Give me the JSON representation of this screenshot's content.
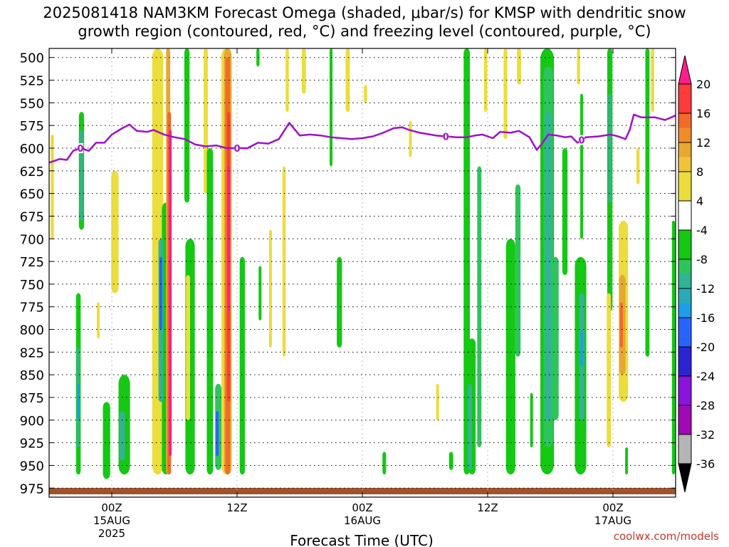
{
  "title_line1": "2025081418 NAM3KM Forecast Omega (shaded, μbar/s) for KMSP with dendritic snow",
  "title_line2": "growth region (contoured, red, °C) and freezing level (contoured, purple, °C)",
  "credit": "coolwx.com/models",
  "chart_data": {
    "type": "heatmap",
    "title": "2025081418 NAM3KM Forecast Omega (shaded, μbar/s) for KMSP with dendritic snow growth region (contoured, red, °C) and freezing level (contoured, purple, °C)",
    "xlabel": "Forecast Time (UTC)",
    "ylabel": "",
    "x_ticks": [
      {
        "label": "00Z",
        "sub": "15AUG",
        "sub2": "2025",
        "hour": 6
      },
      {
        "label": "12Z",
        "sub": "",
        "sub2": "",
        "hour": 18
      },
      {
        "label": "00Z",
        "sub": "16AUG",
        "sub2": "",
        "hour": 30
      },
      {
        "label": "12Z",
        "sub": "",
        "sub2": "",
        "hour": 42
      },
      {
        "label": "00Z",
        "sub": "17AUG",
        "sub2": "",
        "hour": 54
      }
    ],
    "xlim_hours": [
      0,
      60
    ],
    "y_levels_hPa": [
      500,
      525,
      550,
      575,
      600,
      625,
      650,
      675,
      700,
      725,
      750,
      775,
      800,
      825,
      850,
      875,
      900,
      925,
      950,
      975
    ],
    "ylim_hPa": [
      490,
      985
    ],
    "colorbar": {
      "unit": "μbar/s",
      "ticks": [
        20,
        16,
        12,
        8,
        4,
        -4,
        -8,
        -12,
        -16,
        -20,
        -24,
        -28,
        -32,
        -36
      ],
      "bands": [
        {
          "from": 20,
          "to": 24,
          "color": "#ff1e8c"
        },
        {
          "from": 16,
          "to": 20,
          "color": "#ff3c3c"
        },
        {
          "from": 14,
          "to": 16,
          "color": "#f26b2a"
        },
        {
          "from": 12,
          "to": 14,
          "color": "#f08c28"
        },
        {
          "from": 10,
          "to": 12,
          "color": "#e6a830"
        },
        {
          "from": 8,
          "to": 10,
          "color": "#f0c43a"
        },
        {
          "from": 4,
          "to": 8,
          "color": "#ebdd3c"
        },
        {
          "from": -4,
          "to": 4,
          "color": "#ffffff"
        },
        {
          "from": -8,
          "to": -4,
          "color": "#14c814"
        },
        {
          "from": -10,
          "to": -8,
          "color": "#2ec45c"
        },
        {
          "from": -12,
          "to": -10,
          "color": "#33b294"
        },
        {
          "from": -14,
          "to": -12,
          "color": "#2aaab4"
        },
        {
          "from": -16,
          "to": -14,
          "color": "#1e9ee6"
        },
        {
          "from": -20,
          "to": -16,
          "color": "#2864ff"
        },
        {
          "from": -24,
          "to": -20,
          "color": "#2a24d2"
        },
        {
          "from": -28,
          "to": -24,
          "color": "#8a14dc"
        },
        {
          "from": -32,
          "to": -28,
          "color": "#a00ab4"
        },
        {
          "from": -36,
          "to": -32,
          "color": "#b4b4b4"
        },
        {
          "from": -40,
          "to": -36,
          "color": "#000000"
        }
      ]
    },
    "freezing_level": {
      "color": "#a010c8",
      "label": "0",
      "points": [
        [
          0,
          616
        ],
        [
          1,
          612
        ],
        [
          1.7,
          613
        ],
        [
          2.3,
          603
        ],
        [
          3,
          600
        ],
        [
          3.8,
          603
        ],
        [
          4.5,
          594
        ],
        [
          5.3,
          594
        ],
        [
          6,
          585
        ],
        [
          7,
          578
        ],
        [
          7.7,
          574
        ],
        [
          8.4,
          581
        ],
        [
          9.4,
          582
        ],
        [
          10,
          580
        ],
        [
          11,
          585
        ],
        [
          12,
          588
        ],
        [
          13,
          590
        ],
        [
          14,
          596
        ],
        [
          15,
          598
        ],
        [
          16,
          597
        ],
        [
          17,
          600
        ],
        [
          18,
          600
        ],
        [
          19,
          600
        ],
        [
          20,
          594
        ],
        [
          21,
          595
        ],
        [
          22,
          590
        ],
        [
          23,
          572
        ],
        [
          24,
          586
        ],
        [
          25,
          585
        ],
        [
          26,
          586
        ],
        [
          27,
          588
        ],
        [
          28,
          589
        ],
        [
          29,
          590
        ],
        [
          30,
          589
        ],
        [
          31,
          587
        ],
        [
          32,
          583
        ],
        [
          33,
          578
        ],
        [
          33.8,
          577
        ],
        [
          34.5,
          580
        ],
        [
          35.5,
          583
        ],
        [
          36.5,
          585
        ],
        [
          37,
          586
        ],
        [
          38,
          587
        ],
        [
          39,
          588
        ],
        [
          40,
          588
        ],
        [
          40.8,
          586
        ],
        [
          41.5,
          585
        ],
        [
          42,
          587
        ],
        [
          42.5,
          589
        ],
        [
          43.2,
          582
        ],
        [
          44.2,
          583
        ],
        [
          45,
          581
        ],
        [
          46,
          588
        ],
        [
          46.7,
          602
        ],
        [
          47.2,
          595
        ],
        [
          47.8,
          585
        ],
        [
          48.6,
          586
        ],
        [
          49.4,
          588
        ],
        [
          50,
          587
        ],
        [
          50.6,
          594
        ],
        [
          51.4,
          588
        ],
        [
          52.6,
          587
        ],
        [
          53.8,
          585
        ],
        [
          54.5,
          587
        ],
        [
          55.2,
          590
        ],
        [
          55.6,
          580
        ],
        [
          56,
          563
        ],
        [
          56.7,
          566
        ],
        [
          58,
          566
        ],
        [
          59,
          569
        ],
        [
          60,
          564
        ]
      ],
      "labels_at_hours": [
        3,
        18,
        38,
        51
      ]
    },
    "ground_color": "#a0522d",
    "regions": [
      {
        "h": 3.1,
        "p0": 560,
        "p1": 690,
        "w": 0.5,
        "v": -8
      },
      {
        "h": 3.1,
        "p0": 580,
        "p1": 680,
        "w": 0.28,
        "v": -12
      },
      {
        "h": 0.3,
        "p0": 585,
        "p1": 700,
        "w": 0.3,
        "v": 6
      },
      {
        "h": 2.8,
        "p0": 760,
        "p1": 960,
        "w": 0.45,
        "v": -8
      },
      {
        "h": 2.8,
        "p0": 820,
        "p1": 930,
        "w": 0.3,
        "v": -12
      },
      {
        "h": 2.8,
        "p0": 860,
        "p1": 900,
        "w": 0.15,
        "v": -16
      },
      {
        "h": 4.7,
        "p0": 770,
        "p1": 810,
        "w": 0.25,
        "v": 5
      },
      {
        "h": 5.5,
        "p0": 880,
        "p1": 965,
        "w": 0.7,
        "v": -8
      },
      {
        "h": 7.2,
        "p0": 850,
        "p1": 960,
        "w": 1.1,
        "v": -8
      },
      {
        "h": 7.0,
        "p0": 890,
        "p1": 945,
        "w": 0.5,
        "v": -11
      },
      {
        "h": 6.3,
        "p0": 625,
        "p1": 760,
        "w": 0.7,
        "v": 6
      },
      {
        "h": 10.4,
        "p0": 490,
        "p1": 960,
        "w": 1.05,
        "v": 6
      },
      {
        "h": 11.2,
        "p0": 660,
        "p1": 960,
        "w": 0.8,
        "v": -8
      },
      {
        "h": 10.7,
        "p0": 700,
        "p1": 880,
        "w": 0.45,
        "v": -12
      },
      {
        "h": 10.7,
        "p0": 720,
        "p1": 800,
        "w": 0.22,
        "v": -18
      },
      {
        "h": 11.4,
        "p0": 490,
        "p1": 960,
        "w": 0.4,
        "v": 10
      },
      {
        "h": 11.5,
        "p0": 560,
        "p1": 960,
        "w": 0.35,
        "v": 14
      },
      {
        "h": 11.6,
        "p0": 580,
        "p1": 940,
        "w": 0.25,
        "v": 22
      },
      {
        "h": 13.2,
        "p0": 490,
        "p1": 660,
        "w": 0.5,
        "v": -8
      },
      {
        "h": 13.5,
        "p0": 700,
        "p1": 960,
        "w": 0.9,
        "v": -8
      },
      {
        "h": 13.3,
        "p0": 740,
        "p1": 900,
        "w": 0.4,
        "v": 6
      },
      {
        "h": 15.0,
        "p0": 490,
        "p1": 650,
        "w": 0.4,
        "v": 5
      },
      {
        "h": 15.4,
        "p0": 600,
        "p1": 960,
        "w": 0.6,
        "v": -8
      },
      {
        "h": 16.2,
        "p0": 860,
        "p1": 955,
        "w": 0.6,
        "v": -10
      },
      {
        "h": 16.1,
        "p0": 890,
        "p1": 940,
        "w": 0.25,
        "v": -18
      },
      {
        "h": 17.0,
        "p0": 490,
        "p1": 960,
        "w": 1.0,
        "v": 6
      },
      {
        "h": 17.1,
        "p0": 490,
        "p1": 960,
        "w": 0.7,
        "v": 10
      },
      {
        "h": 17.1,
        "p0": 500,
        "p1": 960,
        "w": 0.45,
        "v": 14
      },
      {
        "h": 17.2,
        "p0": 560,
        "p1": 880,
        "w": 0.3,
        "v": 18
      },
      {
        "h": 17.2,
        "p0": 620,
        "p1": 780,
        "w": 0.15,
        "v": 22
      },
      {
        "h": 18.5,
        "p0": 720,
        "p1": 960,
        "w": 0.5,
        "v": -8
      },
      {
        "h": 20.0,
        "p0": 490,
        "p1": 510,
        "w": 0.3,
        "v": -8
      },
      {
        "h": 20.2,
        "p0": 730,
        "p1": 790,
        "w": 0.2,
        "v": -8
      },
      {
        "h": 21.2,
        "p0": 690,
        "p1": 820,
        "w": 0.25,
        "v": 5
      },
      {
        "h": 22.5,
        "p0": 620,
        "p1": 830,
        "w": 0.3,
        "v": 5
      },
      {
        "h": 22.8,
        "p0": 490,
        "p1": 560,
        "w": 0.3,
        "v": 6
      },
      {
        "h": 24.4,
        "p0": 490,
        "p1": 540,
        "w": 0.4,
        "v": 5
      },
      {
        "h": 27.0,
        "p0": 490,
        "p1": 620,
        "w": 0.2,
        "v": -8
      },
      {
        "h": 27.8,
        "p0": 720,
        "p1": 820,
        "w": 0.5,
        "v": -8
      },
      {
        "h": 28.6,
        "p0": 490,
        "p1": 560,
        "w": 0.4,
        "v": 5
      },
      {
        "h": 30.3,
        "p0": 530,
        "p1": 550,
        "w": 0.3,
        "v": 5
      },
      {
        "h": 32.1,
        "p0": 935,
        "p1": 960,
        "w": 0.35,
        "v": -8
      },
      {
        "h": 34.6,
        "p0": 570,
        "p1": 610,
        "w": 0.25,
        "v": 5
      },
      {
        "h": 37.2,
        "p0": 860,
        "p1": 900,
        "w": 0.2,
        "v": 5
      },
      {
        "h": 38.5,
        "p0": 935,
        "p1": 955,
        "w": 0.4,
        "v": -8
      },
      {
        "h": 40.0,
        "p0": 490,
        "p1": 960,
        "w": 0.6,
        "v": -8
      },
      {
        "h": 40.5,
        "p0": 810,
        "p1": 960,
        "w": 0.7,
        "v": -8
      },
      {
        "h": 40.3,
        "p0": 860,
        "p1": 955,
        "w": 0.4,
        "v": -12
      },
      {
        "h": 41.2,
        "p0": 620,
        "p1": 930,
        "w": 0.4,
        "v": -9
      },
      {
        "h": 41.8,
        "p0": 490,
        "p1": 560,
        "w": 0.3,
        "v": 6
      },
      {
        "h": 43.7,
        "p0": 490,
        "p1": 590,
        "w": 0.35,
        "v": 5
      },
      {
        "h": 45.0,
        "p0": 490,
        "p1": 530,
        "w": 0.4,
        "v": 5
      },
      {
        "h": 44.2,
        "p0": 700,
        "p1": 960,
        "w": 0.9,
        "v": -8
      },
      {
        "h": 44.9,
        "p0": 640,
        "p1": 830,
        "w": 0.5,
        "v": -10
      },
      {
        "h": 46.2,
        "p0": 870,
        "p1": 930,
        "w": 0.2,
        "v": -8
      },
      {
        "h": 47.7,
        "p0": 490,
        "p1": 960,
        "w": 1.3,
        "v": -8
      },
      {
        "h": 47.8,
        "p0": 510,
        "p1": 930,
        "w": 0.9,
        "v": -10
      },
      {
        "h": 47.8,
        "p0": 560,
        "p1": 900,
        "w": 0.6,
        "v": -12
      },
      {
        "h": 49.4,
        "p0": 600,
        "p1": 740,
        "w": 0.5,
        "v": -8
      },
      {
        "h": 48.5,
        "p0": 720,
        "p1": 900,
        "w": 0.6,
        "v": -9
      },
      {
        "h": 50.7,
        "p0": 490,
        "p1": 530,
        "w": 0.3,
        "v": 5
      },
      {
        "h": 51.0,
        "p0": 540,
        "p1": 700,
        "w": 0.2,
        "v": -8
      },
      {
        "h": 50.9,
        "p0": 720,
        "p1": 960,
        "w": 1.1,
        "v": -8
      },
      {
        "h": 51.0,
        "p0": 760,
        "p1": 900,
        "w": 0.5,
        "v": -12
      },
      {
        "h": 51.0,
        "p0": 800,
        "p1": 840,
        "w": 0.2,
        "v": -16
      },
      {
        "h": 53.7,
        "p0": 490,
        "p1": 780,
        "w": 0.5,
        "v": -8
      },
      {
        "h": 53.7,
        "p0": 540,
        "p1": 660,
        "w": 0.25,
        "v": -12
      },
      {
        "h": 53.6,
        "p0": 760,
        "p1": 930,
        "w": 0.4,
        "v": 5
      },
      {
        "h": 55.0,
        "p0": 680,
        "p1": 880,
        "w": 0.9,
        "v": 6
      },
      {
        "h": 54.9,
        "p0": 740,
        "p1": 850,
        "w": 0.6,
        "v": 10
      },
      {
        "h": 54.8,
        "p0": 770,
        "p1": 820,
        "w": 0.3,
        "v": 14
      },
      {
        "h": 55.3,
        "p0": 930,
        "p1": 960,
        "w": 0.25,
        "v": -8
      },
      {
        "h": 56.4,
        "p0": 600,
        "p1": 640,
        "w": 0.3,
        "v": 5
      },
      {
        "h": 57.3,
        "p0": 490,
        "p1": 830,
        "w": 0.4,
        "v": -8
      },
      {
        "h": 57.8,
        "p0": 490,
        "p1": 560,
        "w": 0.3,
        "v": 5
      },
      {
        "h": 59.8,
        "p0": 680,
        "p1": 960,
        "w": 0.3,
        "v": -8
      }
    ]
  }
}
